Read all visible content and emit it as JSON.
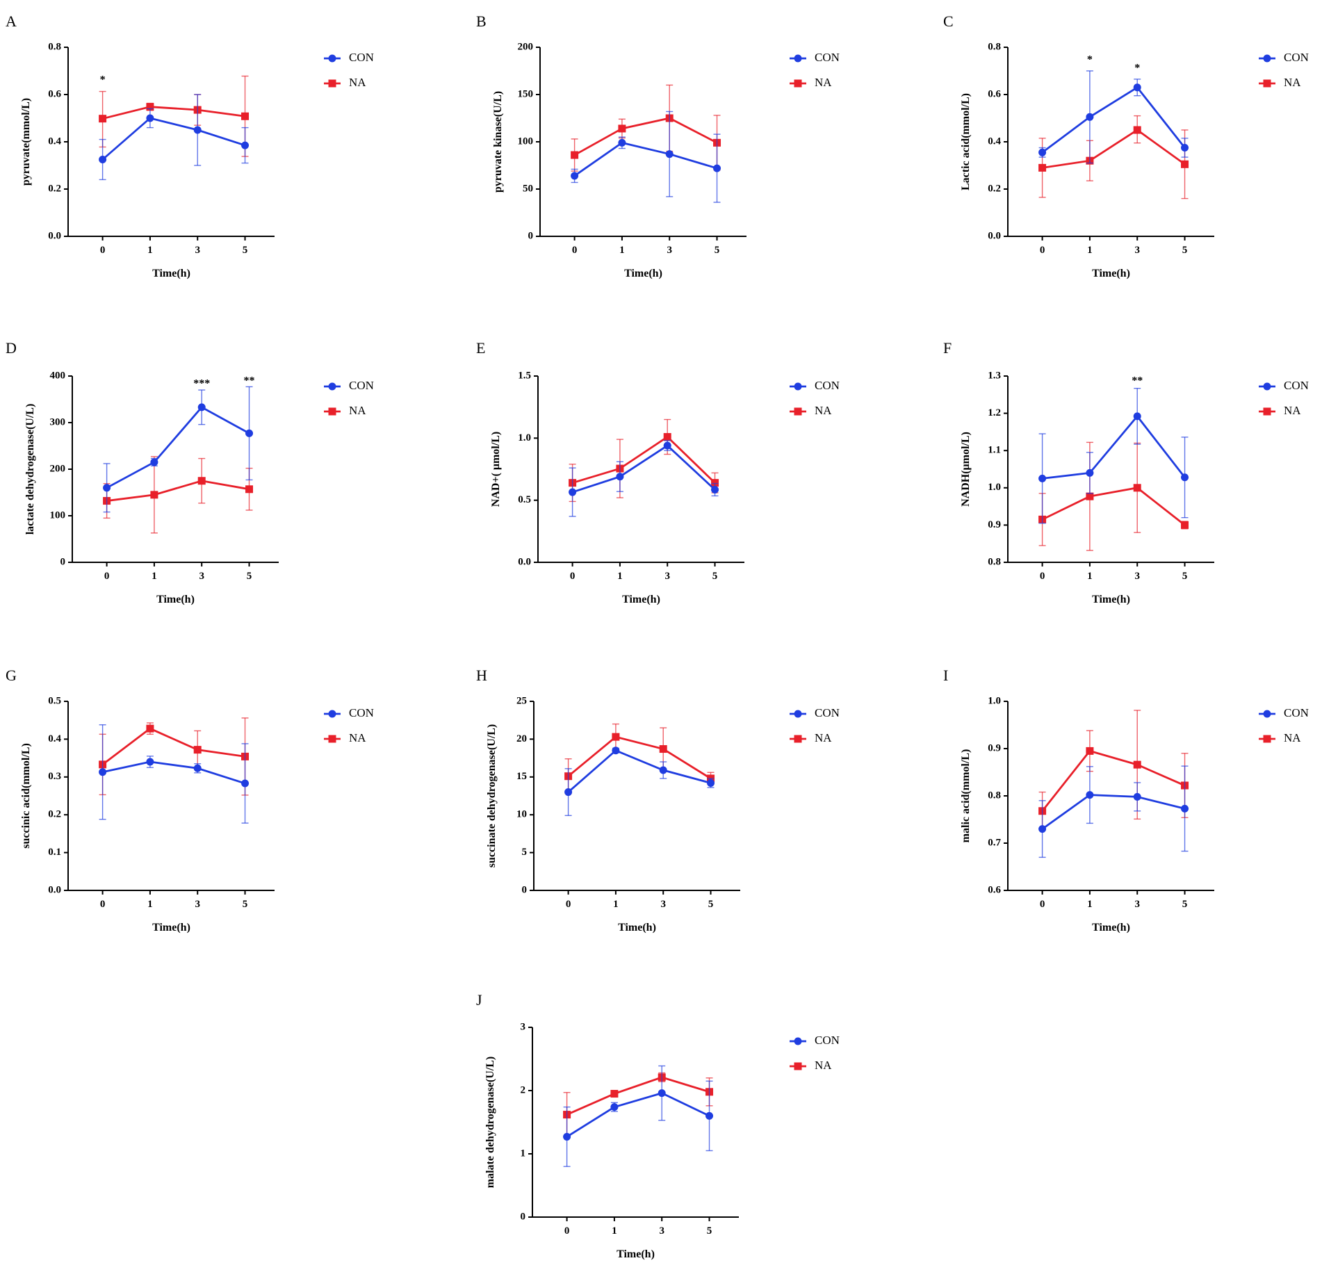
{
  "colors": {
    "CON": "#1f3de0",
    "NA": "#e8202a",
    "axis": "#000000"
  },
  "chart_data": [
    {
      "id": "A",
      "panel_label": "A",
      "type": "line",
      "ylabel": "pyruvate(mmol/L)",
      "ylabel_html": null,
      "xlabel": "Time(h)",
      "categories": [
        "0",
        "1",
        "3",
        "5"
      ],
      "ylim": [
        0,
        0.8
      ],
      "yticks": [
        0.0,
        0.2,
        0.4,
        0.6,
        0.8
      ],
      "ytick_labels": [
        "0.0",
        "0.2",
        "0.4",
        "0.6",
        "0.8"
      ],
      "legend": [
        "CON",
        "NA"
      ],
      "series": [
        {
          "name": "CON",
          "marker": "circle",
          "values": [
            0.325,
            0.5,
            0.45,
            0.385
          ],
          "err_up": [
            0.085,
            0.04,
            0.15,
            0.075
          ],
          "err_down": [
            0.085,
            0.04,
            0.15,
            0.075
          ]
        },
        {
          "name": "NA",
          "marker": "square",
          "values": [
            0.498,
            0.548,
            0.535,
            0.508
          ],
          "err_up": [
            0.115,
            0.015,
            0.065,
            0.17
          ],
          "err_down": [
            0.12,
            0.015,
            0.065,
            0.17
          ]
        }
      ],
      "annotations": [
        {
          "category": "0",
          "text": "*",
          "y": 0.66
        }
      ]
    },
    {
      "id": "B",
      "panel_label": "B",
      "type": "line",
      "ylabel": "pyruvate kinase(U/L)",
      "xlabel": "Time(h)",
      "categories": [
        "0",
        "1",
        "3",
        "5"
      ],
      "ylim": [
        0,
        200
      ],
      "yticks": [
        0,
        50,
        100,
        150,
        200
      ],
      "ytick_labels": [
        "0",
        "50",
        "100",
        "150",
        "200"
      ],
      "legend": [
        "CON",
        "NA"
      ],
      "series": [
        {
          "name": "CON",
          "marker": "circle",
          "values": [
            64,
            99,
            87,
            72
          ],
          "err_up": [
            7,
            6,
            45,
            36
          ],
          "err_down": [
            7,
            6,
            45,
            36
          ]
        },
        {
          "name": "NA",
          "marker": "square",
          "values": [
            86,
            114,
            125,
            99
          ],
          "err_up": [
            17,
            10,
            35,
            29
          ],
          "err_down": [
            17,
            10,
            35,
            29
          ]
        }
      ],
      "annotations": []
    },
    {
      "id": "C",
      "panel_label": "C",
      "type": "line",
      "ylabel": "Lactic acid(mmol/L)",
      "xlabel": "Time(h)",
      "categories": [
        "0",
        "1",
        "3",
        "5"
      ],
      "ylim": [
        0,
        0.8
      ],
      "yticks": [
        0.0,
        0.2,
        0.4,
        0.6,
        0.8
      ],
      "ytick_labels": [
        "0.0",
        "0.2",
        "0.4",
        "0.6",
        "0.8"
      ],
      "legend": [
        "CON",
        "NA"
      ],
      "series": [
        {
          "name": "CON",
          "marker": "circle",
          "values": [
            0.355,
            0.505,
            0.63,
            0.375
          ],
          "err_up": [
            0.02,
            0.195,
            0.035,
            0.04
          ],
          "err_down": [
            0.02,
            0.195,
            0.035,
            0.04
          ]
        },
        {
          "name": "NA",
          "marker": "square",
          "values": [
            0.29,
            0.32,
            0.45,
            0.305
          ],
          "err_up": [
            0.125,
            0.085,
            0.06,
            0.145
          ],
          "err_down": [
            0.125,
            0.085,
            0.055,
            0.145
          ]
        }
      ],
      "annotations": [
        {
          "category": "1",
          "text": "*",
          "y": 0.745
        },
        {
          "category": "3",
          "text": "*",
          "y": 0.71
        }
      ]
    },
    {
      "id": "D",
      "panel_label": "D",
      "type": "line",
      "ylabel": "lactate dehydrogenase(U/L)",
      "xlabel": "Time(h)",
      "categories": [
        "0",
        "1",
        "3",
        "5"
      ],
      "ylim": [
        0,
        400
      ],
      "yticks": [
        0,
        100,
        200,
        300,
        400
      ],
      "ytick_labels": [
        "0",
        "100",
        "200",
        "300",
        "400"
      ],
      "legend": [
        "CON",
        "NA"
      ],
      "series": [
        {
          "name": "CON",
          "marker": "circle",
          "values": [
            160,
            215,
            333,
            277
          ],
          "err_up": [
            52,
            8,
            37,
            100
          ],
          "err_down": [
            52,
            8,
            37,
            100
          ]
        },
        {
          "name": "NA",
          "marker": "square",
          "values": [
            132,
            145,
            175,
            157
          ],
          "err_up": [
            37,
            82,
            48,
            45
          ],
          "err_down": [
            37,
            82,
            48,
            45
          ]
        }
      ],
      "annotations": [
        {
          "category": "3",
          "text": "***",
          "y": 382
        },
        {
          "category": "5",
          "text": "**",
          "y": 388
        }
      ]
    },
    {
      "id": "E",
      "panel_label": "E",
      "type": "line",
      "ylabel": "NAD+( μmol/L)",
      "xlabel": "Time(h)",
      "categories": [
        "0",
        "1",
        "3",
        "5"
      ],
      "ylim": [
        0,
        1.5
      ],
      "yticks": [
        0.0,
        0.5,
        1.0,
        1.5
      ],
      "ytick_labels": [
        "0.0",
        "0.5",
        "1.0",
        "1.5"
      ],
      "legend": [
        "CON",
        "NA"
      ],
      "series": [
        {
          "name": "CON",
          "marker": "circle",
          "values": [
            0.565,
            0.69,
            0.94,
            0.585
          ],
          "err_up": [
            0.195,
            0.12,
            0.04,
            0.05
          ],
          "err_down": [
            0.195,
            0.12,
            0.04,
            0.05
          ]
        },
        {
          "name": "NA",
          "marker": "square",
          "values": [
            0.64,
            0.755,
            1.01,
            0.64
          ],
          "err_up": [
            0.15,
            0.235,
            0.14,
            0.08
          ],
          "err_down": [
            0.15,
            0.235,
            0.14,
            0.08
          ]
        }
      ],
      "annotations": []
    },
    {
      "id": "F",
      "panel_label": "F",
      "type": "line",
      "ylabel": "NADH(μmol/L)",
      "xlabel": "Time(h)",
      "categories": [
        "0",
        "1",
        "3",
        "5"
      ],
      "ylim": [
        0.8,
        1.3
      ],
      "yticks": [
        0.8,
        0.9,
        1.0,
        1.1,
        1.2,
        1.3
      ],
      "ytick_labels": [
        "0.8",
        "0.9",
        "1.0",
        "1.1",
        "1.2",
        "1.3"
      ],
      "legend": [
        "CON",
        "NA"
      ],
      "series": [
        {
          "name": "CON",
          "marker": "circle",
          "values": [
            1.025,
            1.04,
            1.192,
            1.028
          ],
          "err_up": [
            0.12,
            0.055,
            0.075,
            0.108
          ],
          "err_down": [
            0.12,
            0.055,
            0.075,
            0.108
          ]
        },
        {
          "name": "NA",
          "marker": "square",
          "values": [
            0.915,
            0.977,
            1.0,
            0.9
          ],
          "err_up": [
            0.07,
            0.145,
            0.12,
            0.01
          ],
          "err_down": [
            0.07,
            0.145,
            0.12,
            0.01
          ]
        }
      ],
      "annotations": [
        {
          "category": "3",
          "text": "**",
          "y": 1.285
        }
      ]
    },
    {
      "id": "G",
      "panel_label": "G",
      "type": "line",
      "ylabel": "succinic acid(mmol/L)",
      "xlabel": "Time(h)",
      "categories": [
        "0",
        "1",
        "3",
        "5"
      ],
      "ylim": [
        0,
        0.5
      ],
      "yticks": [
        0.0,
        0.1,
        0.2,
        0.3,
        0.4,
        0.5
      ],
      "ytick_labels": [
        "0.0",
        "0.1",
        "0.2",
        "0.3",
        "0.4",
        "0.5"
      ],
      "legend": [
        "CON",
        "NA"
      ],
      "series": [
        {
          "name": "CON",
          "marker": "circle",
          "values": [
            0.313,
            0.34,
            0.323,
            0.283
          ],
          "err_up": [
            0.125,
            0.015,
            0.012,
            0.105
          ],
          "err_down": [
            0.125,
            0.015,
            0.012,
            0.105
          ]
        },
        {
          "name": "NA",
          "marker": "square",
          "values": [
            0.333,
            0.428,
            0.372,
            0.354
          ],
          "err_up": [
            0.08,
            0.015,
            0.05,
            0.102
          ],
          "err_down": [
            0.08,
            0.015,
            0.05,
            0.102
          ]
        }
      ],
      "annotations": []
    },
    {
      "id": "H",
      "panel_label": "H",
      "type": "line",
      "ylabel": "succinate dehydrogenase(U/L)",
      "xlabel": "Time(h)",
      "categories": [
        "0",
        "1",
        "3",
        "5"
      ],
      "ylim": [
        0,
        25
      ],
      "yticks": [
        0,
        5,
        10,
        15,
        20,
        25
      ],
      "ytick_labels": [
        "0",
        "5",
        "10",
        "15",
        "20",
        "25"
      ],
      "legend": [
        "CON",
        "NA"
      ],
      "series": [
        {
          "name": "CON",
          "marker": "circle",
          "values": [
            13.0,
            18.5,
            15.9,
            14.2
          ],
          "err_up": [
            3.1,
            0.3,
            1.1,
            0.6
          ],
          "err_down": [
            3.1,
            0.3,
            1.1,
            0.6
          ]
        },
        {
          "name": "NA",
          "marker": "square",
          "values": [
            15.1,
            20.3,
            18.7,
            14.8
          ],
          "err_up": [
            2.3,
            1.7,
            2.8,
            0.8
          ],
          "err_down": [
            2.3,
            1.7,
            2.8,
            0.8
          ]
        }
      ],
      "annotations": []
    },
    {
      "id": "I",
      "panel_label": "I",
      "type": "line",
      "ylabel": "malic acid(mmol/L)",
      "xlabel": "Time(h)",
      "categories": [
        "0",
        "1",
        "3",
        "5"
      ],
      "ylim": [
        0.6,
        1.0
      ],
      "yticks": [
        0.6,
        0.7,
        0.8,
        0.9,
        1.0
      ],
      "ytick_labels": [
        "0.6",
        "0.7",
        "0.8",
        "0.9",
        "1.0"
      ],
      "legend": [
        "CON",
        "NA"
      ],
      "series": [
        {
          "name": "CON",
          "marker": "circle",
          "values": [
            0.73,
            0.802,
            0.798,
            0.773
          ],
          "err_up": [
            0.06,
            0.06,
            0.03,
            0.09
          ],
          "err_down": [
            0.06,
            0.06,
            0.03,
            0.09
          ]
        },
        {
          "name": "NA",
          "marker": "square",
          "values": [
            0.768,
            0.895,
            0.866,
            0.822
          ],
          "err_up": [
            0.04,
            0.043,
            0.115,
            0.068
          ],
          "err_down": [
            0.04,
            0.043,
            0.115,
            0.068
          ]
        }
      ],
      "annotations": []
    },
    {
      "id": "J",
      "panel_label": "J",
      "type": "line",
      "ylabel": "malate dehydrogenase(U/L)",
      "xlabel": "Time(h)",
      "categories": [
        "0",
        "1",
        "3",
        "5"
      ],
      "ylim": [
        0,
        3
      ],
      "yticks": [
        0,
        1,
        2,
        3
      ],
      "ytick_labels": [
        "0",
        "1",
        "2",
        "3"
      ],
      "legend": [
        "CON",
        "NA"
      ],
      "series": [
        {
          "name": "CON",
          "marker": "circle",
          "values": [
            1.27,
            1.74,
            1.96,
            1.6
          ],
          "err_up": [
            0.47,
            0.07,
            0.43,
            0.55
          ],
          "err_down": [
            0.47,
            0.07,
            0.43,
            0.55
          ]
        },
        {
          "name": "NA",
          "marker": "square",
          "values": [
            1.62,
            1.95,
            2.21,
            1.98
          ],
          "err_up": [
            0.35,
            0.05,
            0.07,
            0.22
          ],
          "err_down": [
            0.35,
            0.05,
            0.07,
            0.22
          ]
        }
      ],
      "annotations": []
    }
  ]
}
